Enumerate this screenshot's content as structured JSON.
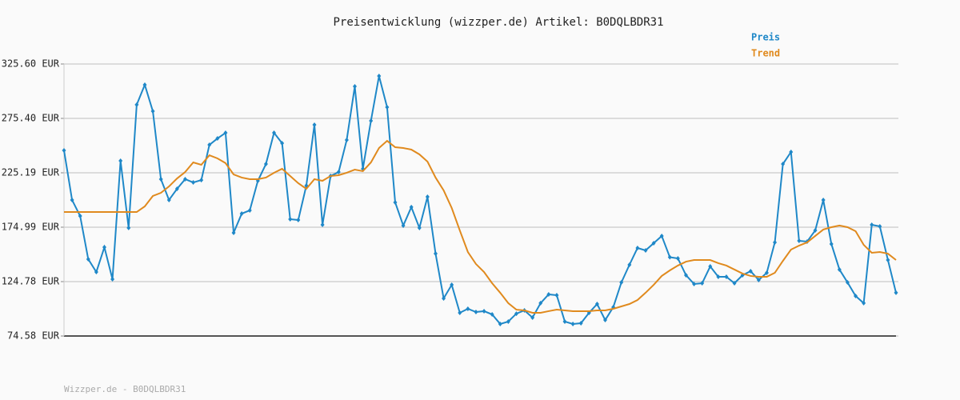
{
  "chart_data": {
    "type": "line",
    "title": "Preisentwicklung (wizzper.de) Artikel: B0DQLBDR31",
    "footer": "Wizzper.de - B0DQLBDR31",
    "categories": [
      null,
      null,
      null,
      null,
      null,
      null,
      null,
      null,
      null,
      null,
      null,
      null,
      null,
      null,
      null,
      null,
      null,
      null,
      null,
      null,
      null,
      null,
      null,
      null,
      null,
      null,
      null,
      null,
      null,
      null,
      null,
      null,
      null,
      null,
      null,
      null,
      null,
      null,
      null,
      null,
      null,
      null,
      null,
      null,
      null,
      null,
      null,
      null,
      null,
      null,
      null,
      null,
      null,
      null,
      null,
      null,
      null,
      null,
      null,
      null,
      null,
      null,
      null,
      null,
      null,
      null,
      null,
      null,
      null,
      null,
      null,
      null,
      null,
      null,
      null,
      null,
      null,
      null,
      null,
      null,
      null,
      null,
      null,
      null,
      null,
      null,
      null,
      null,
      null,
      null,
      null,
      null,
      null,
      null,
      null,
      null,
      null,
      null,
      null,
      null,
      null,
      null,
      null,
      null
    ],
    "series": [
      {
        "name": "Preis",
        "color": "#1f88c8",
        "markers": true,
        "values": [
          245.9,
          200.1,
          185.3,
          145.5,
          133.6,
          156.5,
          127.0,
          236.3,
          174.3,
          288.0,
          306.4,
          282.0,
          219.3,
          200.1,
          210.4,
          219.3,
          216.3,
          218.5,
          251.0,
          256.9,
          262.1,
          169.8,
          187.5,
          190.5,
          217.8,
          233.3,
          262.1,
          252.5,
          182.4,
          181.6,
          213.4,
          269.5,
          177.2,
          222.2,
          225.9,
          255.5,
          304.9,
          228.9,
          273.2,
          314.5,
          285.7,
          197.9,
          176.5,
          193.5,
          174.3,
          203.0,
          150.6,
          109.3,
          121.8,
          96.0,
          99.7,
          96.7,
          97.5,
          94.5,
          85.7,
          87.9,
          95.2,
          98.2,
          91.6,
          104.9,
          113.0,
          112.2,
          87.9,
          85.7,
          86.4,
          96.0,
          104.1,
          89.3,
          101.2,
          124.0,
          140.3,
          155.8,
          153.6,
          160.2,
          166.9,
          147.3,
          146.2,
          130.7,
          122.6,
          123.3,
          138.8,
          129.2,
          129.2,
          123.3,
          130.7,
          134.4,
          126.3,
          132.9,
          161.0,
          233.3,
          244.4,
          162.4,
          161.7,
          172.0,
          200.1,
          159.5,
          135.9,
          124.0,
          111.5,
          104.9,
          177.2,
          175.7,
          144.7,
          114.5
        ]
      },
      {
        "name": "Trend",
        "color": "#e08a1e",
        "markers": false,
        "values": [
          189.0,
          189.0,
          189.0,
          189.0,
          189.0,
          189.0,
          189.0,
          189.0,
          189.0,
          189.0,
          194.2,
          203.8,
          206.7,
          212.6,
          220.0,
          225.9,
          234.8,
          232.6,
          241.4,
          238.5,
          234.1,
          223.7,
          220.8,
          219.3,
          219.3,
          220.8,
          225.2,
          228.9,
          222.2,
          215.6,
          210.4,
          219.3,
          217.8,
          222.2,
          223.0,
          225.2,
          228.1,
          226.7,
          234.8,
          248.1,
          254.7,
          248.8,
          248.1,
          246.6,
          242.2,
          235.5,
          220.8,
          209.0,
          192.7,
          172.0,
          152.1,
          141.0,
          133.6,
          123.3,
          114.5,
          104.9,
          98.9,
          98.2,
          96.0,
          96.0,
          97.5,
          98.9,
          98.2,
          97.5,
          97.5,
          97.5,
          98.2,
          98.2,
          99.7,
          101.9,
          104.1,
          107.8,
          114.5,
          121.8,
          130.0,
          135.1,
          139.6,
          143.2,
          144.7,
          144.7,
          144.7,
          141.8,
          139.6,
          135.9,
          132.2,
          130.0,
          129.2,
          129.2,
          132.9,
          143.9,
          154.3,
          158.0,
          161.0,
          166.9,
          172.8,
          175.0,
          176.5,
          175.0,
          171.3,
          158.7,
          151.4,
          152.1,
          150.6,
          144.7
        ]
      }
    ],
    "ylim": [
      74.58,
      325.6
    ],
    "yticks": [
      {
        "value": 74.58,
        "label": "74.58 EUR"
      },
      {
        "value": 124.78,
        "label": "124.78 EUR"
      },
      {
        "value": 174.99,
        "label": "174.99 EUR"
      },
      {
        "value": 225.19,
        "label": "225.19 EUR"
      },
      {
        "value": 275.4,
        "label": "275.40 EUR"
      },
      {
        "value": 325.6,
        "label": "325.60 EUR"
      }
    ],
    "grid": true,
    "legend": "top-right"
  }
}
